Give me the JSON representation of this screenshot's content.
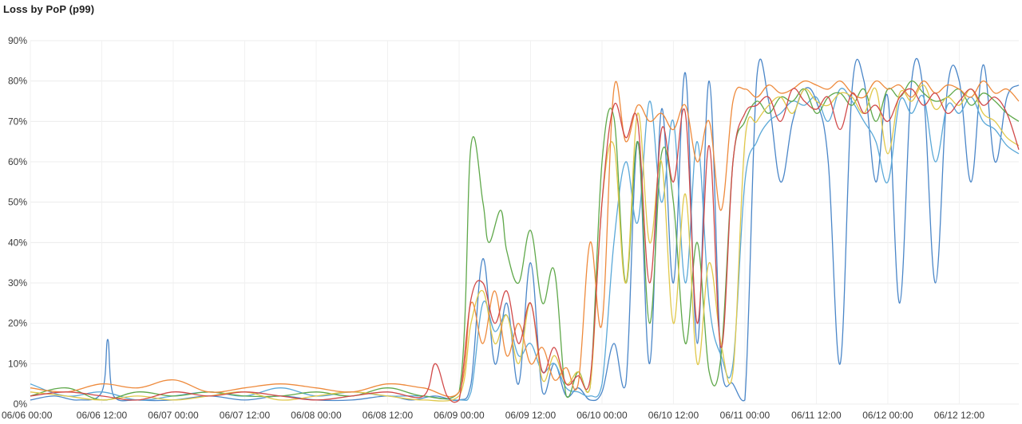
{
  "panel": {
    "title": "Loss by PoP (p99)"
  },
  "chart_data": {
    "type": "line",
    "title": "Loss by PoP (p99)",
    "xlabel": "",
    "ylabel": "",
    "ylim": [
      0,
      90
    ],
    "yticks": [
      "0%",
      "10%",
      "20%",
      "30%",
      "40%",
      "50%",
      "60%",
      "70%",
      "80%",
      "90%"
    ],
    "ytick_values": [
      0,
      10,
      20,
      30,
      40,
      50,
      60,
      70,
      80,
      90
    ],
    "xlim": [
      0,
      166
    ],
    "xticks": [
      "06/06 00:00",
      "06/06 12:00",
      "06/07 00:00",
      "06/07 12:00",
      "06/08 00:00",
      "06/08 12:00",
      "06/09 00:00",
      "06/09 12:00",
      "06/10 00:00",
      "06/10 12:00",
      "06/11 00:00",
      "06/11 12:00",
      "06/12 00:00",
      "06/12 12:00"
    ],
    "xtick_values": [
      0,
      12,
      24,
      36,
      48,
      60,
      72,
      84,
      96,
      108,
      120,
      132,
      144,
      156
    ],
    "grid": true,
    "legend": "none",
    "series": [
      {
        "color": "#4a86c8",
        "x": [
          0,
          4,
          8,
          12,
          13,
          14,
          18,
          24,
          30,
          36,
          42,
          48,
          54,
          60,
          64,
          68,
          72,
          74,
          76,
          78,
          80,
          82,
          84,
          86,
          88,
          90,
          92,
          94,
          96,
          98,
          100,
          102,
          104,
          106,
          108,
          110,
          112,
          114,
          116,
          118,
          120,
          122,
          124,
          126,
          128,
          130,
          132,
          134,
          136,
          138,
          140,
          142,
          144,
          146,
          148,
          150,
          152,
          154,
          156,
          158,
          160,
          162,
          164,
          166
        ],
        "y": [
          1,
          2,
          1,
          3,
          16,
          2,
          1,
          1,
          2,
          1,
          2,
          1,
          1,
          2,
          1,
          2,
          1,
          5,
          36,
          10,
          25,
          5,
          35,
          3,
          10,
          2,
          4,
          1,
          3,
          15,
          5,
          65,
          10,
          73,
          30,
          82,
          15,
          80,
          10,
          5,
          1,
          81,
          75,
          55,
          70,
          78,
          75,
          60,
          10,
          78,
          80,
          55,
          76,
          25,
          80,
          77,
          30,
          78,
          80,
          55,
          84,
          60,
          76,
          79
        ]
      },
      {
        "color": "#5aa8d8",
        "x": [
          0,
          6,
          12,
          18,
          24,
          30,
          36,
          42,
          48,
          54,
          60,
          66,
          72,
          74,
          76,
          78,
          80,
          82,
          84,
          86,
          88,
          90,
          92,
          94,
          96,
          98,
          100,
          102,
          104,
          106,
          108,
          110,
          112,
          114,
          116,
          118,
          120,
          122,
          124,
          126,
          128,
          130,
          132,
          134,
          136,
          138,
          140,
          142,
          144,
          146,
          148,
          150,
          152,
          154,
          156,
          158,
          160,
          162,
          164,
          166
        ],
        "y": [
          5,
          2,
          3,
          1,
          2,
          3,
          2,
          4,
          2,
          3,
          2,
          2,
          1,
          3,
          25,
          18,
          22,
          12,
          15,
          8,
          10,
          4,
          3,
          2,
          5,
          40,
          60,
          45,
          75,
          50,
          70,
          30,
          65,
          25,
          12,
          10,
          55,
          65,
          70,
          72,
          75,
          74,
          76,
          70,
          78,
          75,
          70,
          65,
          55,
          75,
          72,
          76,
          60,
          74,
          72,
          76,
          70,
          68,
          64,
          62
        ]
      },
      {
        "color": "#5fa84a",
        "x": [
          0,
          6,
          12,
          18,
          24,
          30,
          36,
          42,
          48,
          54,
          60,
          66,
          72,
          74,
          76,
          77,
          79,
          80,
          82,
          84,
          86,
          88,
          90,
          92,
          94,
          96,
          98,
          100,
          102,
          104,
          106,
          108,
          110,
          112,
          114,
          116,
          118,
          120,
          122,
          124,
          126,
          128,
          130,
          132,
          134,
          136,
          138,
          140,
          142,
          144,
          146,
          148,
          150,
          152,
          154,
          156,
          158,
          160,
          162,
          164,
          166
        ],
        "y": [
          2,
          4,
          1,
          3,
          2,
          3,
          2,
          2,
          3,
          2,
          4,
          2,
          3,
          64,
          50,
          40,
          48,
          38,
          30,
          43,
          25,
          33,
          2,
          8,
          4,
          60,
          71,
          30,
          65,
          20,
          62,
          50,
          15,
          40,
          8,
          12,
          60,
          70,
          75,
          72,
          76,
          75,
          78,
          72,
          76,
          77,
          74,
          78,
          70,
          78,
          76,
          80,
          77,
          75,
          76,
          78,
          74,
          77,
          75,
          72,
          70
        ]
      },
      {
        "color": "#e0c84a",
        "x": [
          0,
          6,
          12,
          18,
          24,
          30,
          36,
          42,
          48,
          54,
          60,
          66,
          72,
          74,
          76,
          78,
          80,
          82,
          84,
          86,
          88,
          90,
          92,
          94,
          96,
          98,
          100,
          102,
          104,
          106,
          108,
          110,
          112,
          114,
          116,
          118,
          120,
          122,
          124,
          126,
          128,
          130,
          132,
          134,
          136,
          138,
          140,
          142,
          144,
          146,
          148,
          150,
          152,
          154,
          156,
          158,
          160,
          162,
          164,
          166
        ],
        "y": [
          3,
          2,
          1,
          2,
          1,
          2,
          3,
          1,
          2,
          3,
          2,
          1,
          2,
          20,
          28,
          15,
          22,
          10,
          25,
          6,
          12,
          5,
          8,
          4,
          50,
          64,
          30,
          72,
          40,
          60,
          20,
          52,
          10,
          35,
          15,
          8,
          65,
          70,
          74,
          76,
          72,
          78,
          75,
          74,
          77,
          76,
          72,
          78,
          62,
          77,
          75,
          79,
          73,
          76,
          74,
          78,
          72,
          70,
          66,
          64
        ]
      },
      {
        "color": "#ee8a3c",
        "x": [
          0,
          6,
          12,
          18,
          24,
          30,
          36,
          42,
          48,
          54,
          60,
          66,
          72,
          74,
          76,
          78,
          80,
          82,
          84,
          86,
          88,
          90,
          92,
          94,
          96,
          98,
          100,
          102,
          104,
          106,
          108,
          110,
          112,
          114,
          116,
          118,
          120,
          122,
          124,
          126,
          128,
          130,
          132,
          134,
          136,
          138,
          140,
          142,
          144,
          146,
          148,
          150,
          152,
          154,
          156,
          158,
          160,
          162,
          164,
          166
        ],
        "y": [
          4,
          3,
          5,
          4,
          6,
          3,
          4,
          5,
          4,
          3,
          5,
          4,
          3,
          25,
          15,
          28,
          12,
          20,
          10,
          14,
          6,
          9,
          5,
          40,
          20,
          78,
          65,
          74,
          70,
          72,
          68,
          74,
          60,
          70,
          48,
          75,
          78,
          76,
          79,
          77,
          78,
          80,
          79,
          78,
          80,
          77,
          76,
          80,
          78,
          79,
          76,
          80,
          77,
          79,
          78,
          76,
          80,
          77,
          78,
          75
        ]
      },
      {
        "color": "#d14a4a",
        "x": [
          0,
          6,
          12,
          18,
          24,
          30,
          36,
          42,
          48,
          54,
          60,
          66,
          68,
          70,
          72,
          74,
          76,
          78,
          80,
          82,
          84,
          86,
          88,
          90,
          92,
          94,
          96,
          98,
          100,
          102,
          104,
          106,
          108,
          110,
          112,
          114,
          116,
          118,
          120,
          122,
          124,
          126,
          128,
          130,
          132,
          134,
          136,
          138,
          140,
          142,
          144,
          146,
          148,
          150,
          152,
          154,
          156,
          158,
          160,
          162,
          164,
          166
        ],
        "y": [
          2,
          3,
          2,
          1,
          3,
          2,
          3,
          2,
          1,
          2,
          3,
          2,
          10,
          2,
          1,
          26,
          30,
          20,
          28,
          15,
          25,
          8,
          14,
          5,
          7,
          6,
          50,
          74,
          66,
          70,
          30,
          68,
          55,
          72,
          20,
          64,
          14,
          60,
          72,
          74,
          76,
          70,
          78,
          75,
          73,
          76,
          68,
          77,
          72,
          74,
          70,
          76,
          78,
          74,
          77,
          72,
          75,
          78,
          74,
          76,
          72,
          63
        ]
      }
    ]
  }
}
